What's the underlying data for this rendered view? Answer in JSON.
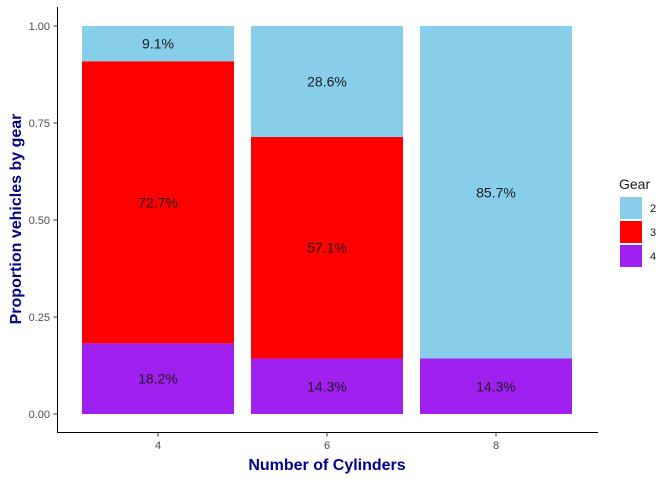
{
  "chart_data": {
    "type": "bar",
    "stacked": true,
    "xlabel": "Number of Cylinders",
    "ylabel": "Proportion vehicles by gear",
    "categories": [
      "4",
      "6",
      "8"
    ],
    "ylim": [
      0,
      1
    ],
    "yticks": [
      "0.00",
      "0.25",
      "0.50",
      "0.75",
      "1.00"
    ],
    "grid": false,
    "legend": {
      "title": "Gear",
      "position": "right",
      "entries": [
        {
          "label": "2",
          "color": "#87ceeb"
        },
        {
          "label": "3",
          "color": "#ff0000"
        },
        {
          "label": "4",
          "color": "#a020f0"
        }
      ]
    },
    "series": [
      {
        "name": "4",
        "color": "#a020f0",
        "values": [
          0.182,
          0.143,
          0.143
        ],
        "labels": [
          "18.2%",
          "14.3%",
          "14.3%"
        ]
      },
      {
        "name": "3",
        "color": "#ff0000",
        "values": [
          0.727,
          0.571,
          0
        ],
        "labels": [
          "72.7%",
          "57.1%",
          ""
        ]
      },
      {
        "name": "2",
        "color": "#87ceeb",
        "values": [
          0.091,
          0.286,
          0.857
        ],
        "labels": [
          "9.1%",
          "28.6%",
          "85.7%"
        ]
      }
    ]
  }
}
